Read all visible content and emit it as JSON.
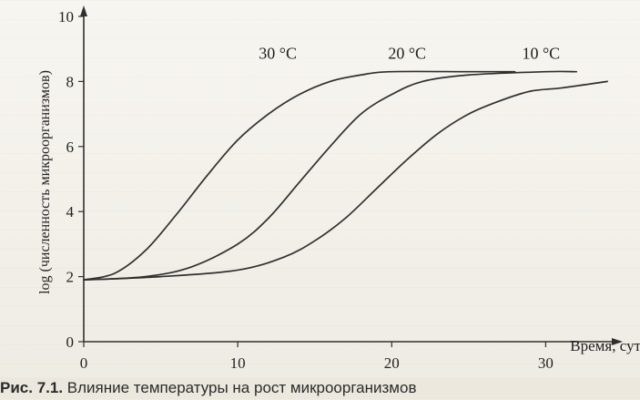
{
  "chart_data": {
    "type": "line",
    "title": "",
    "xlabel": "Время, сут",
    "ylabel": "log (численность микроорганизмов)",
    "xlim": [
      0,
      35
    ],
    "ylim": [
      0,
      10
    ],
    "x_ticks": [
      0,
      10,
      20,
      30
    ],
    "y_ticks": [
      0,
      2,
      4,
      6,
      8,
      10
    ],
    "grid": false,
    "series": [
      {
        "name": "30 °С",
        "points": [
          [
            0,
            1.9
          ],
          [
            2,
            2.1
          ],
          [
            4,
            2.8
          ],
          [
            6,
            3.9
          ],
          [
            8,
            5.1
          ],
          [
            10,
            6.2
          ],
          [
            12,
            7.0
          ],
          [
            14,
            7.6
          ],
          [
            16,
            8.0
          ],
          [
            18,
            8.2
          ],
          [
            20,
            8.3
          ],
          [
            25,
            8.3
          ],
          [
            28,
            8.3
          ]
        ]
      },
      {
        "name": "20 °С",
        "points": [
          [
            0,
            1.9
          ],
          [
            4,
            2.0
          ],
          [
            7,
            2.3
          ],
          [
            10,
            3.0
          ],
          [
            12,
            3.8
          ],
          [
            14,
            4.9
          ],
          [
            16,
            6.0
          ],
          [
            18,
            7.0
          ],
          [
            20,
            7.6
          ],
          [
            22,
            8.0
          ],
          [
            25,
            8.2
          ],
          [
            30,
            8.3
          ],
          [
            32,
            8.3
          ]
        ]
      },
      {
        "name": "10 °С",
        "points": [
          [
            0,
            1.9
          ],
          [
            5,
            2.0
          ],
          [
            10,
            2.2
          ],
          [
            13,
            2.6
          ],
          [
            15,
            3.1
          ],
          [
            17,
            3.8
          ],
          [
            19,
            4.7
          ],
          [
            21,
            5.6
          ],
          [
            23,
            6.4
          ],
          [
            25,
            7.0
          ],
          [
            27,
            7.4
          ],
          [
            29,
            7.7
          ],
          [
            31,
            7.8
          ],
          [
            34,
            8.0
          ]
        ]
      }
    ]
  },
  "caption": {
    "label": "Рис. 7.1.",
    "text": "Влияние температуры на рост микроорганизмов"
  },
  "colors": {
    "line": "#2f2f2f",
    "background": "#f3f0e8"
  }
}
